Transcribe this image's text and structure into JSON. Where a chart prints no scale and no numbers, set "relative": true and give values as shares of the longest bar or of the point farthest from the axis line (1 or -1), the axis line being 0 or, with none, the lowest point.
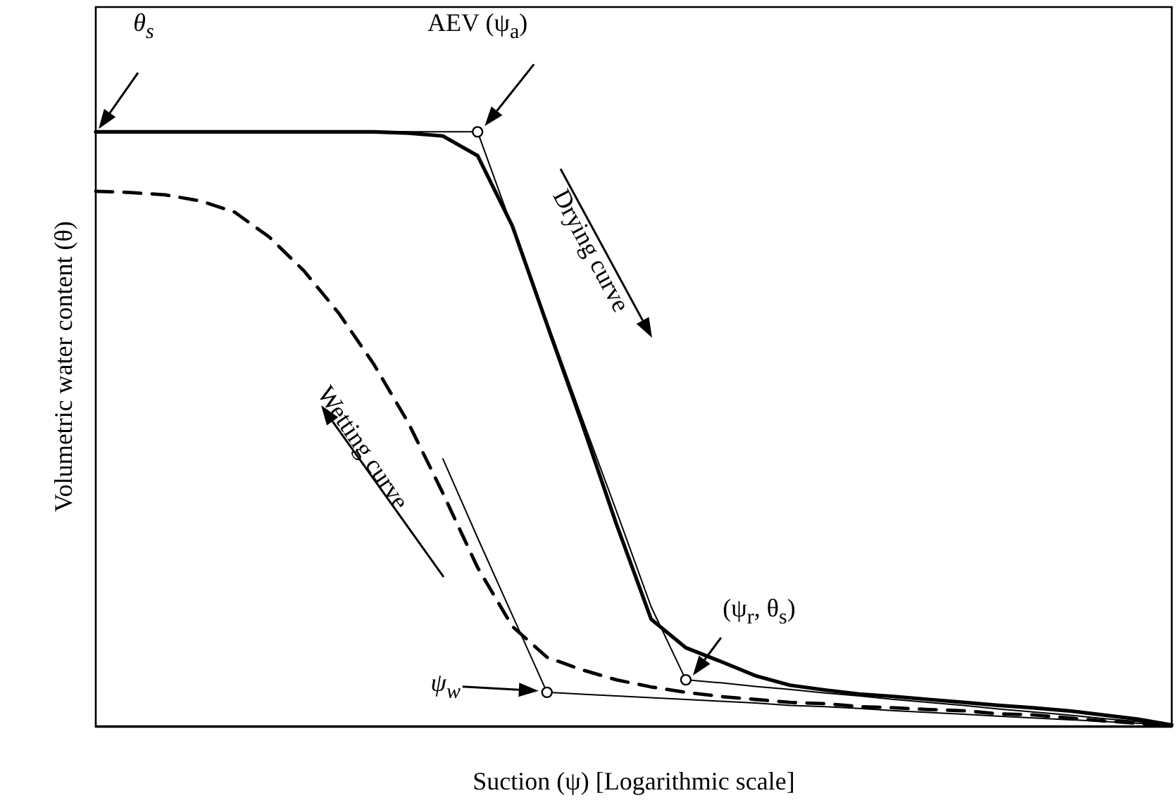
{
  "chart_data": {
    "type": "line",
    "relative": true,
    "legend": false,
    "grid": false,
    "xlabel": "Suction (ψ) [Logarithmic scale]",
    "ylabel": "Volumetric water content (θ)",
    "categories": [
      null,
      null,
      null,
      null,
      null,
      null,
      null,
      null,
      null,
      null,
      null,
      null,
      null,
      null,
      null,
      null,
      null,
      null,
      null,
      null,
      null,
      null,
      null,
      null,
      null,
      null,
      null,
      null,
      null,
      null,
      null,
      null
    ],
    "series": [
      {
        "name": "Drying curve",
        "color": "#000000",
        "line_style": "solid",
        "marker": "none",
        "values": [
          1.0,
          1.0,
          1.0,
          1.0,
          1.0,
          1.0,
          1.0,
          1.0,
          1.0,
          0.998,
          0.993,
          0.96,
          0.842,
          0.676,
          0.511,
          0.34,
          0.18,
          0.132,
          0.109,
          0.085,
          0.069,
          0.061,
          0.054,
          0.05,
          0.045,
          0.04,
          0.035,
          0.031,
          0.026,
          0.019,
          0.012,
          0.002
        ]
      },
      {
        "name": "Wetting curve",
        "color": "#000000",
        "line_style": "dashed",
        "marker": "none",
        "values": [
          0.9,
          0.898,
          0.894,
          0.884,
          0.865,
          0.823,
          0.766,
          0.695,
          0.61,
          0.511,
          0.392,
          0.267,
          0.168,
          0.116,
          0.095,
          0.078,
          0.066,
          0.057,
          0.05,
          0.045,
          0.04,
          0.038,
          0.033,
          0.031,
          0.028,
          0.026,
          0.021,
          0.019,
          0.014,
          0.009,
          0.005,
          0.0
        ]
      },
      {
        "color": "#000000",
        "line_style": "solid",
        "marker": "none",
        "values": [
          1.0,
          1.0,
          1.0,
          1.0,
          1.0,
          1.0,
          1.0,
          1.0,
          1.0,
          1.0,
          1.0,
          1.0,
          0.839,
          0.681,
          0.52,
          0.362,
          0.201,
          0.078,
          0.073,
          0.067,
          0.062,
          0.056,
          0.051,
          0.045,
          0.04,
          0.035,
          0.029,
          0.024,
          0.019,
          0.013,
          0.008,
          0.002
        ]
      },
      {
        "color": "#000000",
        "line_style": "solid",
        "marker": "none",
        "values": [
          null,
          null,
          null,
          null,
          null,
          null,
          null,
          null,
          null,
          null,
          0.45,
          0.317,
          0.187,
          0.057,
          0.054,
          0.051,
          0.048,
          0.045,
          0.042,
          0.039,
          0.035,
          0.033,
          0.03,
          0.026,
          0.023,
          0.02,
          0.017,
          0.014,
          0.011,
          0.008,
          0.005,
          0.002
        ]
      }
    ],
    "annotations": [
      "θ$_{s}$",
      "AEV (ψ$_{a}$)",
      "(ψ$_{r}$, θ$_{s}$)",
      "ψ$_{w}$"
    ]
  }
}
